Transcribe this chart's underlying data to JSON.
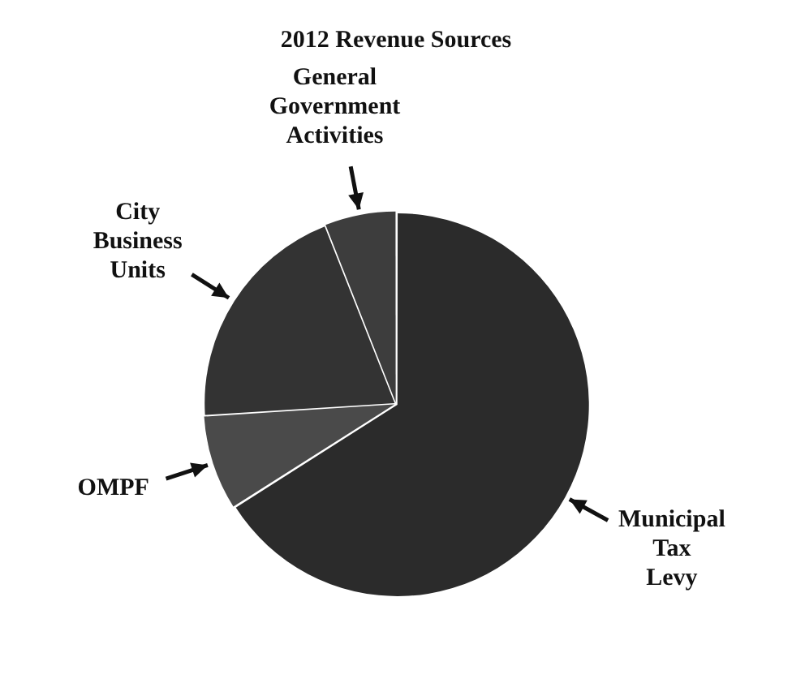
{
  "chart_data": {
    "type": "pie",
    "title": "2012 Revenue Sources",
    "categories": [
      "Municipal Tax Levy",
      "OMPF",
      "City Business Units",
      "General Government Activities"
    ],
    "values": [
      66,
      8,
      20,
      6
    ],
    "colors": [
      "#2b2b2b",
      "#4a4a4a",
      "#333333",
      "#3d3d3d"
    ],
    "legend": false
  }
}
